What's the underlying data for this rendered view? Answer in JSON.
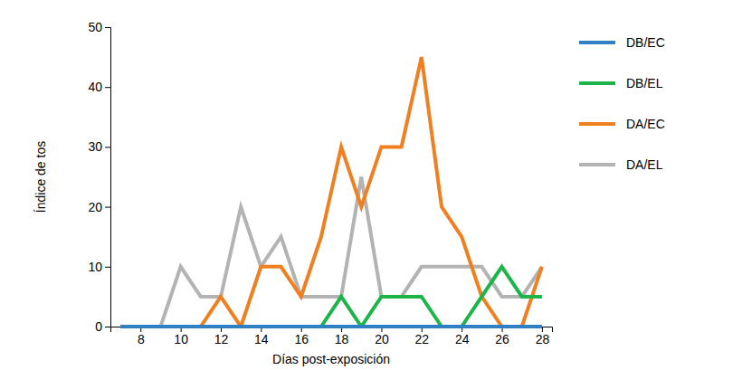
{
  "chart_data": {
    "type": "line",
    "x_label": "Días post-exposición",
    "y_label": "Índice de tos",
    "x": [
      7,
      8,
      9,
      10,
      11,
      12,
      13,
      14,
      15,
      16,
      17,
      18,
      19,
      20,
      21,
      22,
      23,
      24,
      25,
      26,
      27,
      28
    ],
    "xlim": [
      6.5,
      28.5
    ],
    "xticks": [
      8,
      10,
      12,
      14,
      16,
      18,
      20,
      22,
      24,
      26,
      28
    ],
    "ylim": [
      0,
      50
    ],
    "yticks": [
      0,
      10,
      20,
      30,
      40,
      50
    ],
    "grid": false,
    "legend": "right",
    "series": [
      {
        "name": "DB/EC",
        "color": "#2f80c3",
        "values": [
          0,
          0,
          0,
          0,
          0,
          0,
          0,
          0,
          0,
          0,
          0,
          0,
          0,
          0,
          0,
          0,
          0,
          0,
          0,
          0,
          0,
          0
        ]
      },
      {
        "name": "DB/EL",
        "color": "#1db54a",
        "values": [
          0,
          0,
          0,
          0,
          0,
          0,
          0,
          0,
          0,
          0,
          0,
          5,
          0,
          5,
          5,
          5,
          0,
          0,
          5,
          10,
          5,
          5
        ]
      },
      {
        "name": "DA/EC",
        "color": "#f07f22",
        "values": [
          0,
          0,
          0,
          0,
          0,
          5,
          0,
          10,
          10,
          5,
          15,
          30,
          20,
          30,
          30,
          45,
          20,
          15,
          5,
          0,
          0,
          10
        ]
      },
      {
        "name": "DA/EL",
        "color": "#b3b3b3",
        "values": [
          0,
          0,
          0,
          10,
          5,
          5,
          20,
          10,
          15,
          5,
          5,
          5,
          25,
          5,
          5,
          10,
          10,
          10,
          10,
          5,
          5,
          10
        ]
      }
    ]
  }
}
